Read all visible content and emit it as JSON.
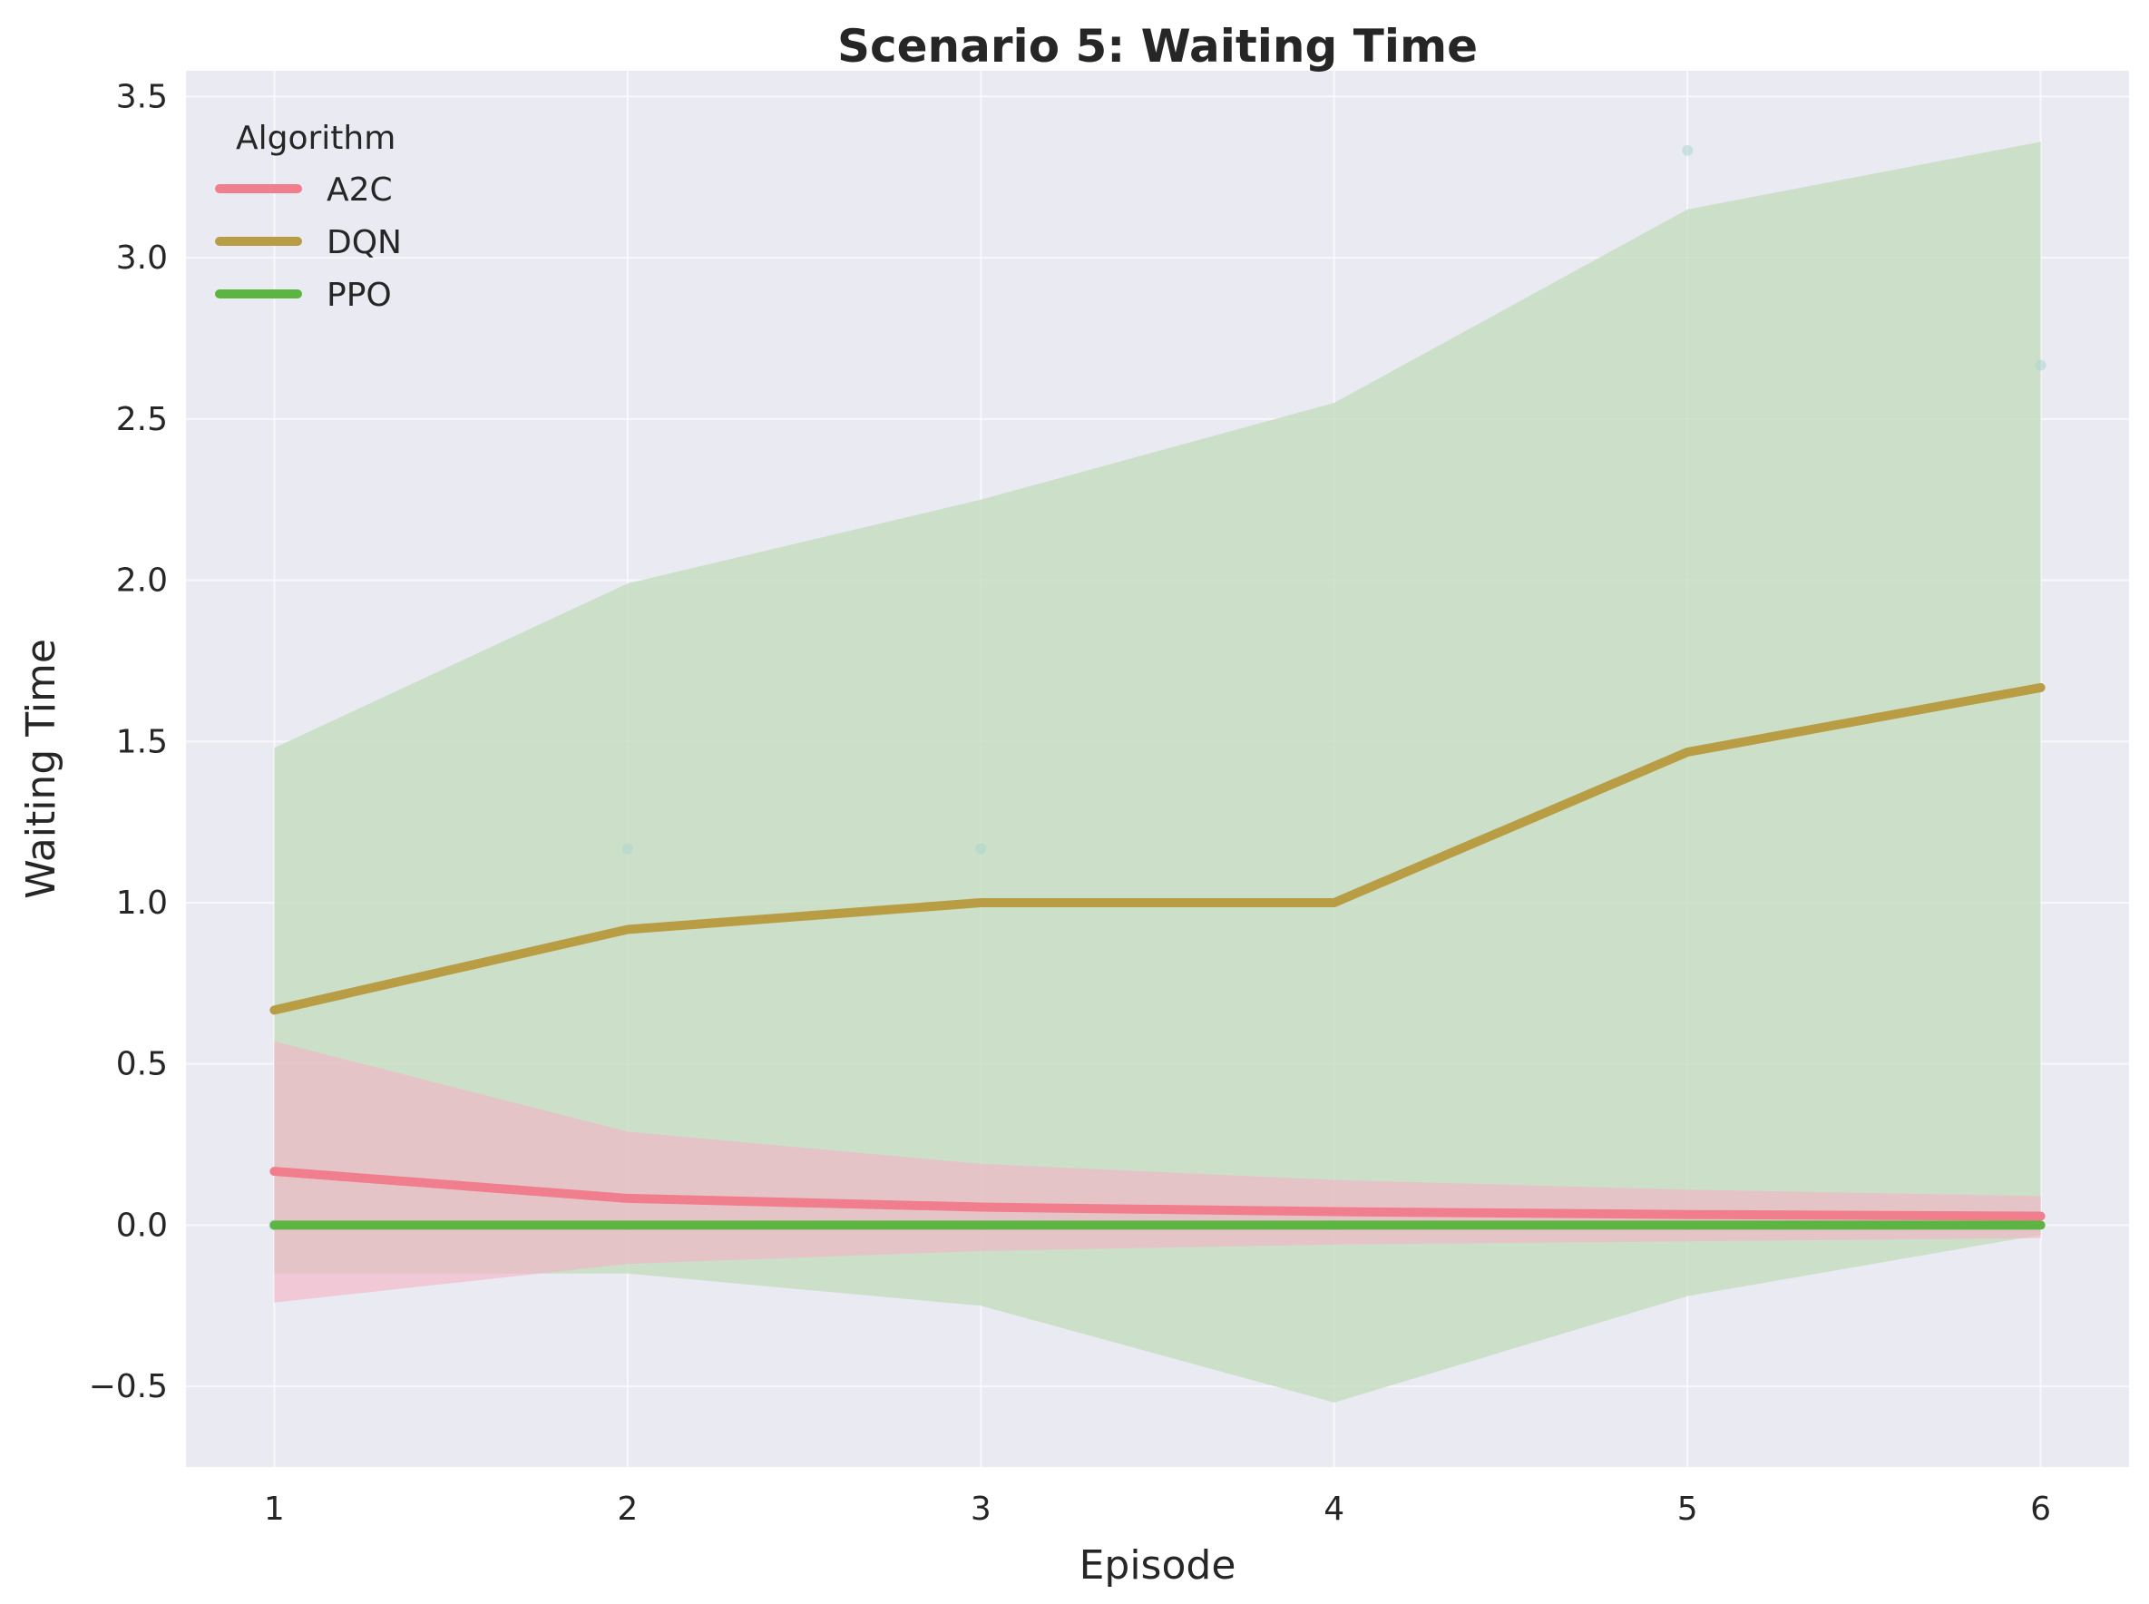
{
  "chart_data": {
    "type": "line",
    "title": "Scenario 5: Waiting Time",
    "xlabel": "Episode",
    "ylabel": "Waiting Time",
    "x": [
      1,
      2,
      3,
      4,
      5,
      6
    ],
    "xlim": [
      0.75,
      6.25
    ],
    "ylim": [
      -0.75,
      3.58
    ],
    "xticks": [
      1,
      2,
      3,
      4,
      5,
      6
    ],
    "yticks": [
      -0.5,
      0.0,
      0.5,
      1.0,
      1.5,
      2.0,
      2.5,
      3.0,
      3.5
    ],
    "ytick_labels": [
      "−0.5",
      "0.0",
      "0.5",
      "1.0",
      "1.5",
      "2.0",
      "2.5",
      "3.0",
      "3.5"
    ],
    "grid": true,
    "legend": {
      "title": "Algorithm",
      "placement": "top-left"
    },
    "series": [
      {
        "name": "A2C",
        "color": "#f07e8d",
        "values": [
          0.167,
          0.083,
          0.056,
          0.042,
          0.033,
          0.028
        ],
        "band_lower": [
          -0.24,
          -0.12,
          -0.08,
          -0.06,
          -0.05,
          -0.04
        ],
        "band_upper": [
          0.57,
          0.29,
          0.19,
          0.14,
          0.11,
          0.09
        ],
        "band_color": "#f2b6c6"
      },
      {
        "name": "DQN",
        "color": "#b99d44",
        "values": [
          0.667,
          0.917,
          1.0,
          1.0,
          1.467,
          1.667
        ],
        "band_lower": [
          -0.15,
          -0.15,
          -0.25,
          -0.55,
          -0.22,
          -0.03
        ],
        "band_upper": [
          1.48,
          1.99,
          2.25,
          2.55,
          3.15,
          3.36
        ],
        "band_color": "#c2dbbb",
        "points": [
          0.0,
          1.167,
          1.167,
          0.0,
          3.333,
          2.667
        ]
      },
      {
        "name": "PPO",
        "color": "#5cb543",
        "values": [
          0.0,
          0.0,
          0.0,
          0.0,
          0.0,
          0.0
        ]
      }
    ]
  }
}
